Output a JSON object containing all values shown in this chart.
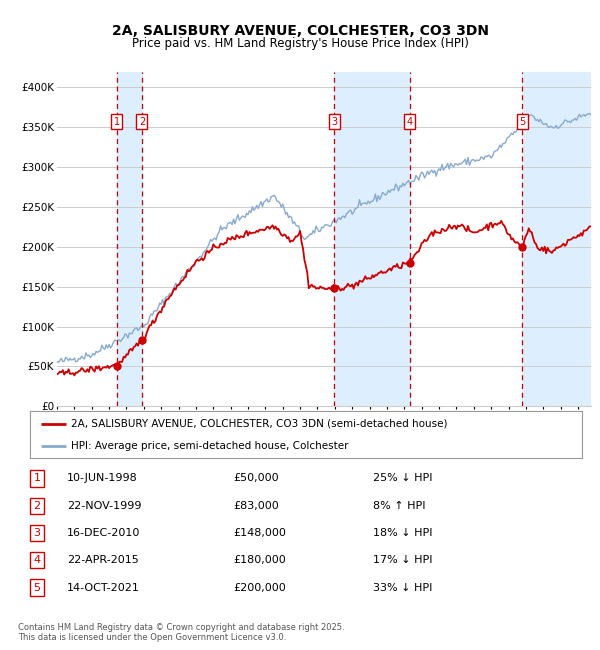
{
  "title": "2A, SALISBURY AVENUE, COLCHESTER, CO3 3DN",
  "subtitle": "Price paid vs. HM Land Registry's House Price Index (HPI)",
  "ylim": [
    0,
    420000
  ],
  "yticks": [
    0,
    50000,
    100000,
    150000,
    200000,
    250000,
    300000,
    350000,
    400000
  ],
  "ytick_labels": [
    "£0",
    "£50K",
    "£100K",
    "£150K",
    "£200K",
    "£250K",
    "£300K",
    "£350K",
    "£400K"
  ],
  "xlim": [
    1995.0,
    2025.75
  ],
  "sales": [
    {
      "num": 1,
      "date": "10-JUN-1998",
      "date_x": 1998.44,
      "price": 50000
    },
    {
      "num": 2,
      "date": "22-NOV-1999",
      "date_x": 1999.89,
      "price": 83000
    },
    {
      "num": 3,
      "date": "16-DEC-2010",
      "date_x": 2010.96,
      "price": 148000
    },
    {
      "num": 4,
      "date": "22-APR-2015",
      "date_x": 2015.31,
      "price": 180000
    },
    {
      "num": 5,
      "date": "14-OCT-2021",
      "date_x": 2021.79,
      "price": 200000
    }
  ],
  "sale_line_color": "#cc0000",
  "hpi_line_color": "#88aacc",
  "shade_color": "#ddeeff",
  "grid_color": "#cccccc",
  "bg_color": "#ffffff",
  "vline_color": "#cc0000",
  "legend_label_sale": "2A, SALISBURY AVENUE, COLCHESTER, CO3 3DN (semi-detached house)",
  "legend_label_hpi": "HPI: Average price, semi-detached house, Colchester",
  "footer": "Contains HM Land Registry data © Crown copyright and database right 2025.\nThis data is licensed under the Open Government Licence v3.0.",
  "table_rows": [
    [
      "1",
      "10-JUN-1998",
      "£50,000",
      "25% ↓ HPI"
    ],
    [
      "2",
      "22-NOV-1999",
      "£83,000",
      "8% ↑ HPI"
    ],
    [
      "3",
      "16-DEC-2010",
      "£148,000",
      "18% ↓ HPI"
    ],
    [
      "4",
      "22-APR-2015",
      "£180,000",
      "17% ↓ HPI"
    ],
    [
      "5",
      "14-OCT-2021",
      "£200,000",
      "33% ↓ HPI"
    ]
  ]
}
